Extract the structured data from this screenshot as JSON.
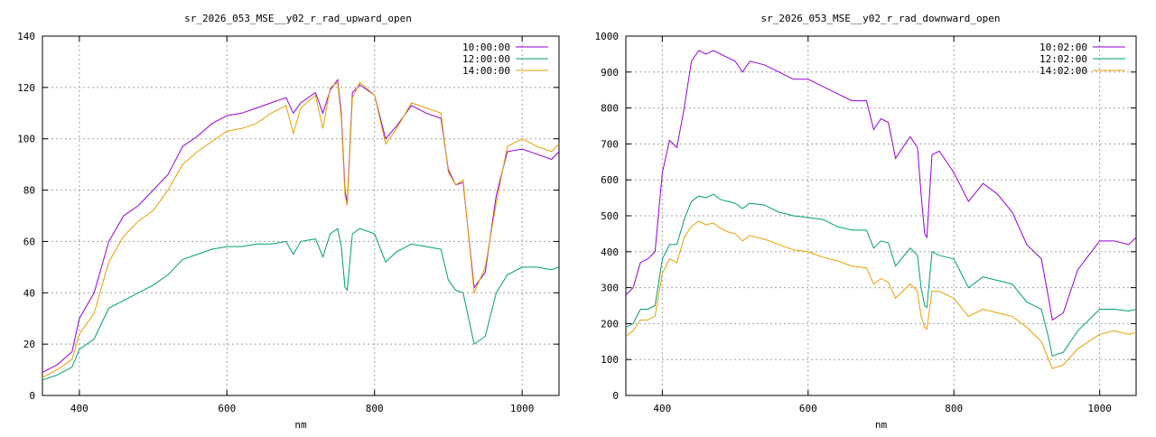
{
  "chart_data": [
    {
      "type": "line",
      "title": "sr_2026_053_MSE__y02_r_rad_upward_open",
      "xlabel": "nm",
      "ylabel": "",
      "xlim": [
        350,
        1050
      ],
      "ylim": [
        0,
        140
      ],
      "xticks": [
        400,
        600,
        800,
        1000
      ],
      "yticks": [
        0,
        20,
        40,
        60,
        80,
        100,
        120,
        140
      ],
      "grid": true,
      "legend_position": "top-right",
      "series": [
        {
          "name": "10:00:00",
          "color": "#9400d3",
          "x": [
            350,
            370,
            390,
            400,
            420,
            440,
            460,
            480,
            500,
            520,
            540,
            560,
            580,
            600,
            620,
            640,
            660,
            680,
            690,
            700,
            720,
            730,
            740,
            750,
            755,
            760,
            763,
            770,
            780,
            800,
            815,
            830,
            850,
            870,
            890,
            900,
            910,
            920,
            935,
            950,
            965,
            980,
            1000,
            1020,
            1040,
            1050
          ],
          "values": [
            9,
            12,
            17,
            30,
            40,
            60,
            70,
            74,
            80,
            86,
            97,
            101,
            106,
            109,
            110,
            112,
            114,
            116,
            110,
            114,
            118,
            110,
            119,
            123,
            110,
            80,
            75,
            118,
            121,
            117,
            100,
            105,
            113,
            110,
            108,
            88,
            82,
            83,
            42,
            48,
            78,
            95,
            96,
            94,
            92,
            95
          ]
        },
        {
          "name": "12:00:00",
          "color": "#009e73",
          "x": [
            350,
            370,
            390,
            400,
            420,
            440,
            460,
            480,
            500,
            520,
            540,
            560,
            580,
            600,
            620,
            640,
            660,
            680,
            690,
            700,
            720,
            730,
            740,
            750,
            755,
            760,
            763,
            770,
            780,
            800,
            815,
            830,
            850,
            870,
            890,
            900,
            910,
            920,
            935,
            950,
            965,
            980,
            1000,
            1020,
            1040,
            1050
          ],
          "values": [
            6,
            8,
            11,
            18,
            22,
            34,
            37,
            40,
            43,
            47,
            53,
            55,
            57,
            58,
            58,
            59,
            59,
            60,
            55,
            60,
            61,
            54,
            63,
            65,
            58,
            42,
            41,
            63,
            65,
            63,
            52,
            56,
            59,
            58,
            57,
            45,
            41,
            40,
            20,
            23,
            40,
            47,
            50,
            50,
            49,
            50
          ]
        },
        {
          "name": "14:00:00",
          "color": "#e69f00",
          "x": [
            350,
            370,
            390,
            400,
            420,
            440,
            460,
            480,
            500,
            520,
            540,
            560,
            580,
            600,
            620,
            640,
            660,
            680,
            690,
            700,
            720,
            730,
            740,
            750,
            755,
            760,
            763,
            770,
            780,
            800,
            815,
            830,
            850,
            870,
            890,
            900,
            910,
            920,
            935,
            950,
            965,
            980,
            1000,
            1020,
            1040,
            1050
          ],
          "values": [
            7,
            10,
            14,
            24,
            32,
            52,
            62,
            68,
            72,
            80,
            90,
            95,
            99,
            103,
            104,
            106,
            110,
            113,
            102,
            112,
            117,
            104,
            120,
            122,
            108,
            78,
            74,
            116,
            122,
            117,
            98,
            104,
            114,
            112,
            110,
            87,
            82,
            84,
            40,
            50,
            75,
            97,
            100,
            97,
            95,
            98
          ]
        }
      ]
    },
    {
      "type": "line",
      "title": "sr_2026_053_MSE__y02_r_rad_downward_open",
      "xlabel": "nm",
      "ylabel": "",
      "xlim": [
        350,
        1050
      ],
      "ylim": [
        0,
        1000
      ],
      "xticks": [
        400,
        600,
        800,
        1000
      ],
      "yticks": [
        0,
        100,
        200,
        300,
        400,
        500,
        600,
        700,
        800,
        900,
        1000
      ],
      "grid": true,
      "legend_position": "top-right",
      "series": [
        {
          "name": "10:02:00",
          "color": "#9400d3",
          "x": [
            350,
            360,
            370,
            380,
            390,
            400,
            410,
            420,
            430,
            440,
            450,
            460,
            470,
            480,
            490,
            500,
            510,
            520,
            540,
            560,
            580,
            600,
            620,
            640,
            660,
            680,
            690,
            700,
            710,
            720,
            740,
            750,
            755,
            760,
            763,
            770,
            780,
            800,
            820,
            840,
            860,
            880,
            900,
            920,
            930,
            935,
            950,
            970,
            1000,
            1020,
            1040,
            1050
          ],
          "values": [
            280,
            300,
            370,
            380,
            400,
            620,
            710,
            690,
            800,
            930,
            960,
            950,
            960,
            950,
            940,
            930,
            900,
            930,
            920,
            900,
            880,
            880,
            860,
            840,
            820,
            820,
            740,
            770,
            760,
            660,
            720,
            690,
            560,
            450,
            440,
            670,
            680,
            620,
            540,
            590,
            560,
            510,
            420,
            380,
            270,
            210,
            230,
            350,
            430,
            430,
            420,
            440
          ]
        },
        {
          "name": "12:02:00",
          "color": "#009e73",
          "x": [
            350,
            360,
            370,
            380,
            390,
            400,
            410,
            420,
            430,
            440,
            450,
            460,
            470,
            480,
            490,
            500,
            510,
            520,
            540,
            560,
            580,
            600,
            620,
            640,
            660,
            680,
            690,
            700,
            710,
            720,
            740,
            750,
            755,
            760,
            763,
            770,
            780,
            800,
            820,
            840,
            860,
            880,
            900,
            920,
            930,
            935,
            950,
            970,
            1000,
            1020,
            1040,
            1050
          ],
          "values": [
            190,
            200,
            240,
            240,
            250,
            380,
            420,
            420,
            490,
            540,
            555,
            550,
            560,
            545,
            540,
            535,
            520,
            535,
            530,
            510,
            500,
            495,
            490,
            470,
            460,
            460,
            410,
            430,
            425,
            360,
            410,
            390,
            300,
            250,
            245,
            400,
            390,
            380,
            300,
            330,
            320,
            310,
            260,
            240,
            160,
            110,
            120,
            180,
            240,
            240,
            235,
            240
          ]
        },
        {
          "name": "14:02:00",
          "color": "#e69f00",
          "x": [
            350,
            360,
            370,
            380,
            390,
            400,
            410,
            420,
            430,
            440,
            450,
            460,
            470,
            480,
            490,
            500,
            510,
            520,
            540,
            560,
            580,
            600,
            620,
            640,
            660,
            680,
            690,
            700,
            710,
            720,
            740,
            750,
            755,
            760,
            763,
            770,
            780,
            800,
            820,
            840,
            860,
            880,
            900,
            920,
            930,
            935,
            950,
            970,
            1000,
            1020,
            1040,
            1050
          ],
          "values": [
            165,
            180,
            210,
            210,
            220,
            340,
            380,
            370,
            440,
            470,
            485,
            475,
            480,
            465,
            455,
            450,
            430,
            445,
            435,
            420,
            405,
            400,
            385,
            375,
            360,
            355,
            310,
            325,
            315,
            270,
            310,
            290,
            220,
            190,
            185,
            290,
            290,
            270,
            220,
            240,
            230,
            220,
            190,
            150,
            100,
            75,
            85,
            130,
            170,
            180,
            170,
            175
          ]
        }
      ]
    }
  ]
}
